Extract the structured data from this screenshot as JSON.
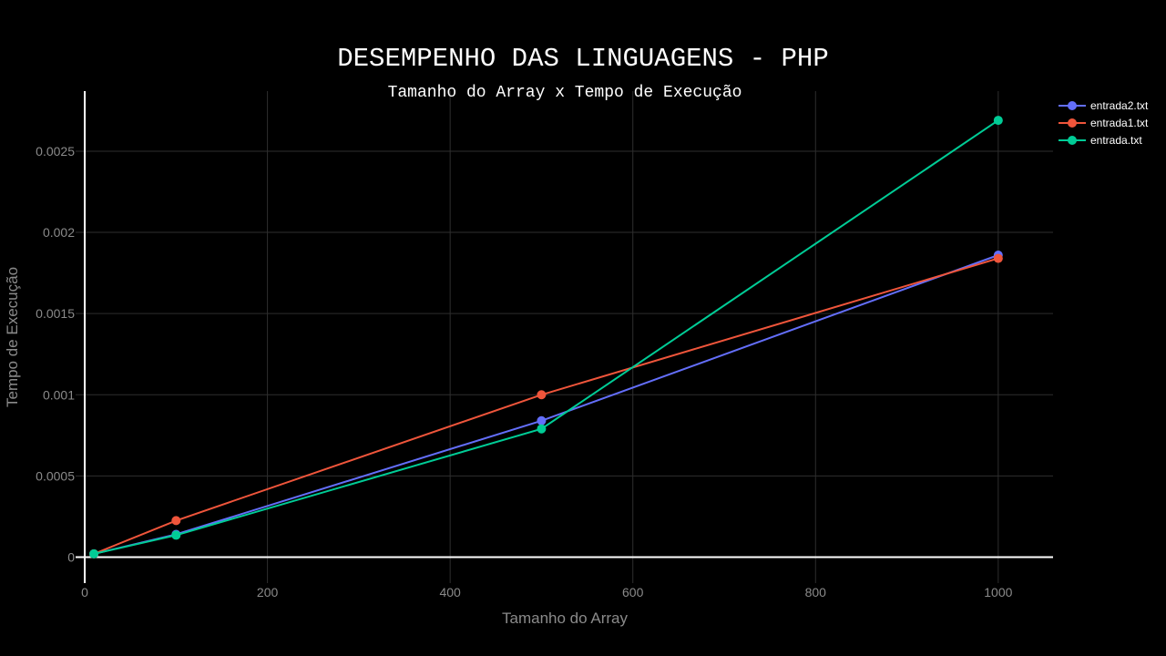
{
  "chart_data": {
    "type": "line",
    "title": "DESEMPENHO DAS LINGUAGENS - PHP",
    "subtitle": "Tamanho do Array x Tempo de Execução",
    "xlabel": "Tamanho do Array",
    "ylabel": "Tempo de Execução",
    "xlim": [
      -10,
      1060
    ],
    "ylim": [
      -0.00016,
      0.00287
    ],
    "xticks": [
      0,
      200,
      400,
      600,
      800,
      1000
    ],
    "xtick_labels": [
      "0",
      "200",
      "400",
      "600",
      "800",
      "1000"
    ],
    "yticks": [
      0,
      0.0005,
      0.001,
      0.0015,
      0.002,
      0.0025
    ],
    "ytick_labels": [
      "0",
      "0.0005",
      "0.001",
      "0.0015",
      "0.002",
      "0.0025"
    ],
    "grid": true,
    "legend_position": "top-right",
    "series": [
      {
        "name": "entrada2.txt",
        "color": "#636efa",
        "x": [
          10,
          100,
          500,
          1000
        ],
        "y": [
          2e-05,
          0.00014,
          0.00084,
          0.00186
        ]
      },
      {
        "name": "entrada1.txt",
        "color": "#ef553b",
        "x": [
          10,
          100,
          500,
          1000
        ],
        "y": [
          2e-05,
          0.000225,
          0.001,
          0.00184
        ]
      },
      {
        "name": "entrada.txt",
        "color": "#00cc96",
        "x": [
          10,
          100,
          500,
          1000
        ],
        "y": [
          2e-05,
          0.000135,
          0.00079,
          0.00269
        ]
      }
    ]
  }
}
